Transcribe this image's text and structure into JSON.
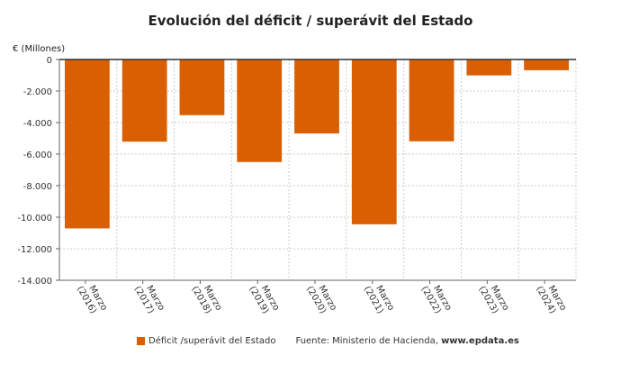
{
  "chart_data": {
    "type": "bar",
    "title": "Evolución del déficit / superávit del Estado",
    "ylabel": "€ (Millones)",
    "xlabel": "",
    "categories": [
      "Marzo (2016)",
      "Marzo (2017)",
      "Marzo (2018)",
      "Marzo (2019)",
      "Marzo (2020)",
      "Marzo (2021)",
      "Marzo (2022)",
      "Marzo (2023)",
      "Marzo (2024)"
    ],
    "series": [
      {
        "name": "Déficit /superávit del Estado",
        "values": [
          -10710,
          -5210,
          -3530,
          -6500,
          -4690,
          -10450,
          -5190,
          -1010,
          -680
        ],
        "color": "#d95f02"
      }
    ],
    "ylim": [
      -14000,
      0
    ],
    "yticks": [
      "0",
      "-2.000",
      "-4.000",
      "-6.000",
      "-8.000",
      "-10.000",
      "-12.000",
      "-14.000"
    ],
    "grid": true,
    "legend_position": "bottom"
  },
  "source": {
    "prefix": "Fuente: Ministerio de Hacienda, ",
    "site": "www.epdata.es"
  }
}
